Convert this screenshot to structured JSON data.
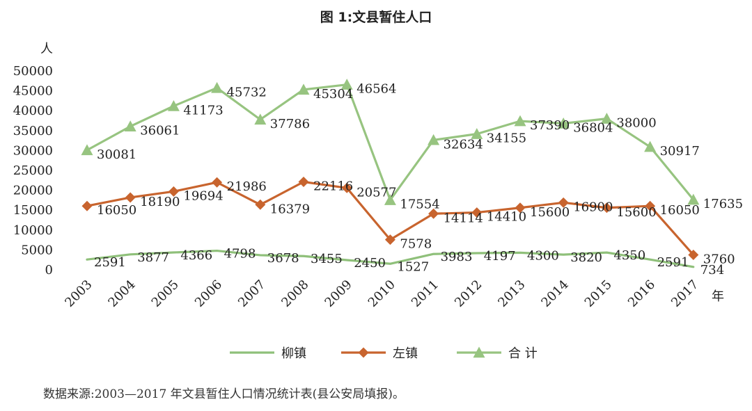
{
  "chart_data": {
    "type": "line",
    "title": "图 1:文县暂住人口",
    "ylabel": "人",
    "xlabel": "年",
    "categories": [
      "2003",
      "2004",
      "2005",
      "2006",
      "2007",
      "2008",
      "2009",
      "2010",
      "2011",
      "2012",
      "2013",
      "2014",
      "2015",
      "2016",
      "2017"
    ],
    "ylim": [
      0,
      50000
    ],
    "yticks": [
      0,
      5000,
      10000,
      15000,
      20000,
      25000,
      30000,
      35000,
      40000,
      45000,
      50000
    ],
    "grid": false,
    "legend_position": "bottom",
    "series": [
      {
        "name": "柳镇",
        "color": "#8fc07a",
        "marker": "none",
        "values": [
          2591,
          3877,
          4366,
          4798,
          3678,
          3455,
          2450,
          1527,
          3983,
          4197,
          4300,
          3820,
          4350,
          2591,
          734
        ]
      },
      {
        "name": "左镇",
        "color": "#c8642e",
        "marker": "diamond",
        "values": [
          16050,
          18190,
          19694,
          21986,
          16379,
          22116,
          20577,
          7578,
          14114,
          14410,
          15600,
          16900,
          15600,
          16050,
          3760
        ]
      },
      {
        "name": "合 计",
        "color": "#97c480",
        "marker": "triangle",
        "values": [
          30081,
          36061,
          41173,
          45732,
          37786,
          45304,
          46564,
          17554,
          32634,
          34155,
          37390,
          36804,
          38000,
          30917,
          17635
        ]
      }
    ]
  },
  "source_note": "数据来源:2003—2017 年文县暂住人口情况统计表(县公安局填报)。"
}
